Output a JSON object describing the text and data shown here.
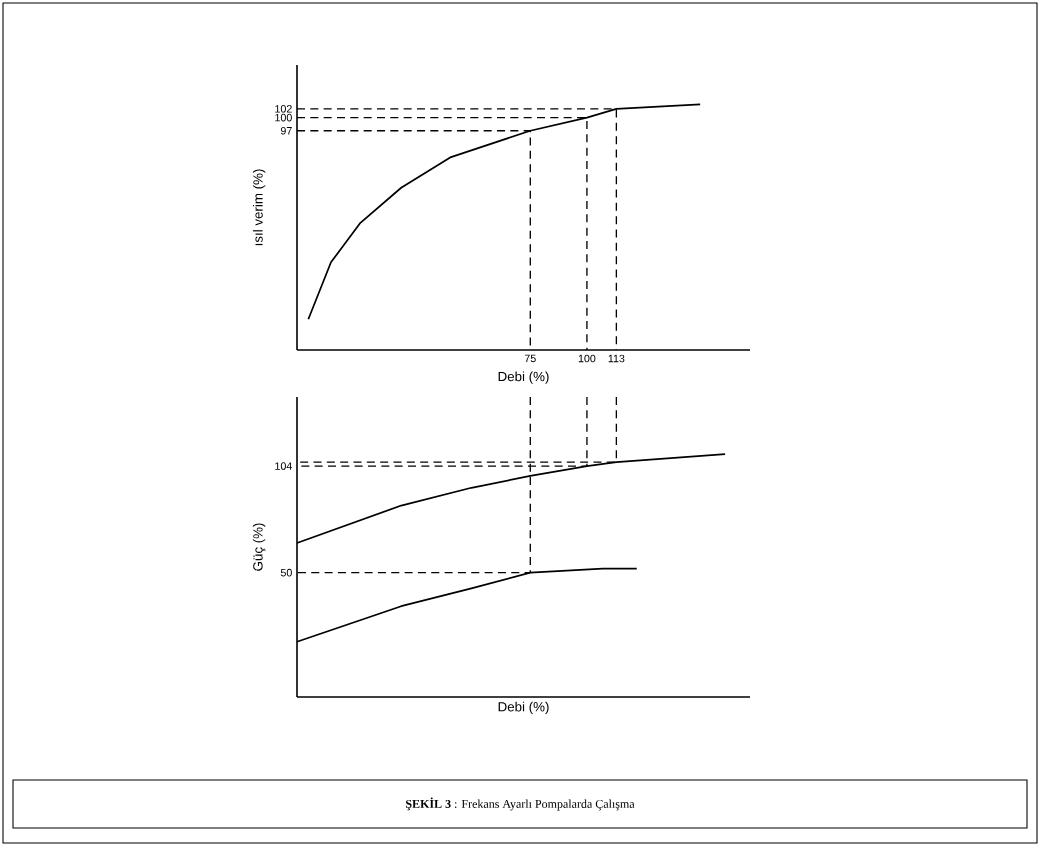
{
  "chart_data": [
    {
      "type": "line",
      "xlabel": "Debi (%)",
      "ylabel": "ısıl verim (%)",
      "xlim": [
        -28,
        172
      ],
      "ylim": [
        47,
        112
      ],
      "xticks": [
        75,
        100,
        113
      ],
      "yticks": [
        97,
        100,
        102
      ],
      "series": [
        {
          "color": "#000000",
          "line_style": "solid",
          "x": [
            -23,
            -13,
            0,
            18,
            40,
            75,
            100,
            113,
            150
          ],
          "values": [
            54,
            67,
            76,
            84,
            91,
            97,
            100,
            102,
            103
          ]
        },
        {
          "color": "#000000",
          "line_style": "dashed",
          "x": [
            -28,
            75,
            75
          ],
          "values": [
            97,
            97,
            47
          ]
        },
        {
          "color": "#000000",
          "line_style": "dashed",
          "x": [
            -28,
            100,
            100
          ],
          "values": [
            100,
            100,
            47
          ]
        },
        {
          "color": "#000000",
          "line_style": "dashed",
          "x": [
            -28,
            113,
            113
          ],
          "values": [
            102,
            102,
            47
          ]
        }
      ]
    },
    {
      "type": "line",
      "xlabel": "Debi (%)",
      "ylabel": "Güç (%)",
      "xlim": [
        -28,
        172
      ],
      "ylim": [
        -13,
        139
      ],
      "yticks": [
        50,
        104
      ],
      "tick_labels": "y",
      "annotations": [
        "**ŞEKİL 3** : Frekans Ayarlı Pompalarda Çalışma"
      ],
      "series": [
        {
          "color": "#000000",
          "line_style": "solid",
          "x": [
            -28,
            18,
            49,
            75,
            100,
            113,
            161
          ],
          "values": [
            65,
            84,
            93,
            99,
            104,
            106,
            110
          ]
        },
        {
          "color": "#000000",
          "line_style": "solid",
          "x": [
            -28,
            18,
            49,
            75,
            107,
            122
          ],
          "values": [
            15,
            33,
            42,
            50,
            52,
            52
          ]
        },
        {
          "color": "#000000",
          "line_style": "dashed",
          "x": [
            75,
            75,
            -28
          ],
          "values": [
            139,
            50,
            50
          ]
        },
        {
          "color": "#000000",
          "line_style": "dashed",
          "x": [
            100,
            100,
            -28
          ],
          "values": [
            139,
            104,
            104
          ]
        },
        {
          "color": "#000000",
          "line_style": "dashed",
          "x": [
            113,
            113,
            -28
          ],
          "values": [
            139,
            106,
            106
          ]
        }
      ]
    }
  ]
}
